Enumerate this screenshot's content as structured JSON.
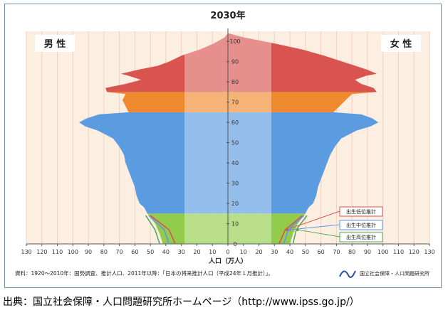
{
  "chart_data": {
    "type": "bar",
    "title": "2030年",
    "left_label": "男 性",
    "right_label": "女 性",
    "xlabel": "人口（万人）",
    "x_ticks": [
      130,
      120,
      110,
      100,
      90,
      80,
      70,
      60,
      50,
      40,
      30,
      20,
      10,
      0,
      10,
      20,
      30,
      40,
      50,
      60,
      70,
      80,
      90,
      100,
      110,
      120,
      130
    ],
    "y_ticks": [
      0,
      10,
      20,
      30,
      40,
      50,
      60,
      70,
      80,
      90,
      100
    ],
    "xlim": [
      -130,
      130
    ],
    "ylim": [
      0,
      105
    ],
    "age_bands": [
      {
        "from": 0,
        "to": 14,
        "color": "#93cc4c"
      },
      {
        "from": 15,
        "to": 64,
        "color": "#5b9be0"
      },
      {
        "from": 65,
        "to": 74,
        "color": "#f08a2e"
      },
      {
        "from": 75,
        "to": 105,
        "color": "#d9534f"
      }
    ],
    "male_profile": [
      [
        0,
        42
      ],
      [
        5,
        44
      ],
      [
        10,
        47
      ],
      [
        15,
        52
      ],
      [
        18,
        54
      ],
      [
        20,
        57
      ],
      [
        24,
        59
      ],
      [
        28,
        60
      ],
      [
        32,
        62
      ],
      [
        36,
        64
      ],
      [
        40,
        66
      ],
      [
        44,
        67
      ],
      [
        48,
        70
      ],
      [
        52,
        74
      ],
      [
        56,
        84
      ],
      [
        58,
        92
      ],
      [
        60,
        96
      ],
      [
        62,
        91
      ],
      [
        64,
        83
      ],
      [
        65,
        64
      ],
      [
        68,
        66
      ],
      [
        71,
        68
      ],
      [
        74,
        66
      ],
      [
        75,
        78
      ],
      [
        77,
        79
      ],
      [
        79,
        66
      ],
      [
        81,
        56
      ],
      [
        83,
        64
      ],
      [
        84,
        69
      ],
      [
        86,
        58
      ],
      [
        88,
        45
      ],
      [
        90,
        38
      ],
      [
        93,
        30
      ],
      [
        96,
        18
      ],
      [
        99,
        9
      ],
      [
        102,
        2
      ],
      [
        104,
        0
      ]
    ],
    "female_profile": [
      [
        0,
        40
      ],
      [
        5,
        42
      ],
      [
        10,
        45
      ],
      [
        15,
        50
      ],
      [
        18,
        52
      ],
      [
        20,
        55
      ],
      [
        24,
        57
      ],
      [
        28,
        58
      ],
      [
        32,
        60
      ],
      [
        36,
        62
      ],
      [
        40,
        64
      ],
      [
        44,
        66
      ],
      [
        48,
        69
      ],
      [
        52,
        73
      ],
      [
        56,
        83
      ],
      [
        58,
        92
      ],
      [
        60,
        97
      ],
      [
        62,
        93
      ],
      [
        64,
        86
      ],
      [
        65,
        68
      ],
      [
        68,
        72
      ],
      [
        71,
        76
      ],
      [
        74,
        80
      ],
      [
        75,
        96
      ],
      [
        77,
        94
      ],
      [
        79,
        86
      ],
      [
        81,
        82
      ],
      [
        83,
        89
      ],
      [
        84,
        96
      ],
      [
        86,
        90
      ],
      [
        88,
        82
      ],
      [
        90,
        74
      ],
      [
        93,
        62
      ],
      [
        96,
        48
      ],
      [
        99,
        30
      ],
      [
        102,
        10
      ],
      [
        104,
        0
      ]
    ],
    "scenario_lines": [
      {
        "name": "出生低位推計",
        "color": "#d9534f",
        "male": [
          [
            0,
            34
          ],
          [
            7,
            38
          ],
          [
            14,
            50
          ]
        ],
        "female": [
          [
            0,
            33
          ],
          [
            7,
            37
          ],
          [
            14,
            48
          ]
        ]
      },
      {
        "name": "出生中位推計",
        "color": "#5b9be0",
        "male": [
          [
            0,
            38
          ],
          [
            7,
            41
          ],
          [
            14,
            51
          ]
        ],
        "female": [
          [
            0,
            36
          ],
          [
            7,
            39
          ],
          [
            14,
            49
          ]
        ]
      },
      {
        "name": "出生高位推計",
        "color": "#55a85a",
        "male": [
          [
            0,
            44
          ],
          [
            7,
            47
          ],
          [
            14,
            53
          ]
        ],
        "female": [
          [
            0,
            42
          ],
          [
            7,
            44
          ],
          [
            14,
            51
          ]
        ]
      }
    ],
    "legend": [
      "出生低位推計",
      "出生中位推計",
      "出生高位推計"
    ]
  },
  "note": "資料：1920〜2010年：国勢調査、推計人口、2011年以降：「日本の将来推計人口（平成24年１月推計）」。",
  "logo_text": "国立社会保障・人口問題研究所",
  "source": "出典：国立社会保障・人口問題研究所ホームページ（http://www.ipss.go.jp/）"
}
